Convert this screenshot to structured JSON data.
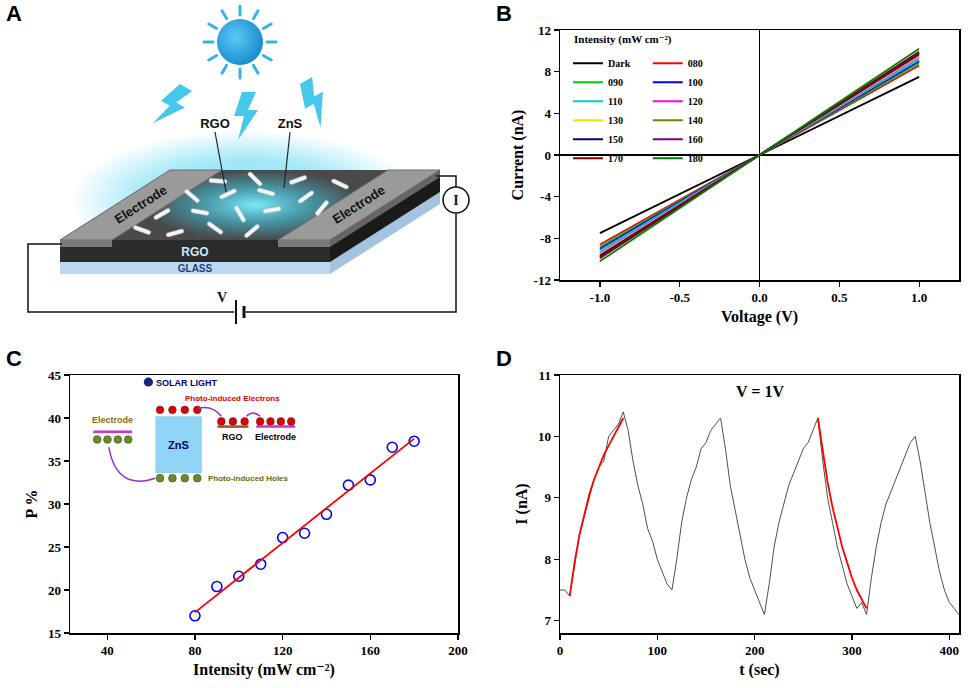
{
  "diagram": {
    "panel": "A",
    "labels": {
      "top_rgo": "RGO",
      "top_zns": "ZnS",
      "left_electrode": "Electrode",
      "right_electrode": "Electrode",
      "layer": "RGO",
      "substrate": "GLASS",
      "voltage": "V",
      "meter": "I"
    }
  },
  "chart_data": [
    {
      "panel": "B",
      "type": "line",
      "x_label": "Voltage (V)",
      "y_label": "Current (nA)",
      "legend_title": "Intensity (mW cm⁻²)",
      "legend": "upper left",
      "grid": false,
      "x": [
        -1,
        0,
        1
      ],
      "series": [
        {
          "name": "Dark",
          "color": "#000000",
          "line_style": "solid",
          "values": [
            -7.5,
            0,
            7.5
          ]
        },
        {
          "name": "080",
          "color": "#ff0000",
          "line_style": "solid",
          "values": [
            -8.6,
            0,
            8.6
          ]
        },
        {
          "name": "090",
          "color": "#00cc00",
          "line_style": "solid",
          "values": [
            -8.8,
            0,
            8.8
          ]
        },
        {
          "name": "100",
          "color": "#0000ff",
          "line_style": "solid",
          "values": [
            -9.0,
            0,
            9.0
          ]
        },
        {
          "name": "110",
          "color": "#00cccc",
          "line_style": "solid",
          "values": [
            -9.2,
            0,
            9.2
          ]
        },
        {
          "name": "120",
          "color": "#ff00ff",
          "line_style": "solid",
          "values": [
            -9.4,
            0,
            9.4
          ]
        },
        {
          "name": "130",
          "color": "#e6e600",
          "line_style": "solid",
          "values": [
            -9.5,
            0,
            9.5
          ]
        },
        {
          "name": "140",
          "color": "#808000",
          "line_style": "solid",
          "values": [
            -9.6,
            0,
            9.6
          ]
        },
        {
          "name": "150",
          "color": "#000080",
          "line_style": "solid",
          "values": [
            -9.7,
            0,
            9.7
          ]
        },
        {
          "name": "160",
          "color": "#800080",
          "line_style": "solid",
          "values": [
            -9.8,
            0,
            9.8
          ]
        },
        {
          "name": "170",
          "color": "#800000",
          "line_style": "solid",
          "values": [
            -9.9,
            0,
            9.9
          ]
        },
        {
          "name": "180",
          "color": "#008000",
          "line_style": "solid",
          "values": [
            -10.2,
            0,
            10.2
          ]
        }
      ],
      "xlim": [
        -1.25,
        1.25
      ],
      "xticks": [
        {
          "value": -1,
          "label": "-1.0"
        },
        -0.5,
        {
          "value": 0,
          "label": "0.0"
        },
        0.5,
        {
          "value": 1,
          "label": "1.0"
        }
      ],
      "ylim": [
        -12,
        12
      ],
      "yticks": [
        -12,
        -8,
        -4,
        0,
        4,
        8,
        12
      ]
    },
    {
      "panel": "C",
      "type": "scatter",
      "x_label": "Intensity (mW cm⁻²)",
      "y_label": "P %",
      "grid": false,
      "series": [
        {
          "type": "scatter",
          "marker": "open circle",
          "color": "#0000ff",
          "x": [
            80,
            90,
            100,
            110,
            120,
            130,
            140,
            150,
            160,
            170,
            180
          ],
          "values": [
            17.0,
            20.4,
            21.6,
            23.0,
            26.1,
            26.6,
            28.8,
            32.2,
            32.8,
            36.6,
            37.3
          ]
        },
        {
          "type": "line",
          "line_style": "solid",
          "color": "#ff0000",
          "x": [
            80,
            180
          ],
          "values": [
            17.4,
            37.6
          ]
        }
      ],
      "xlim": [
        23,
        200
      ],
      "xticks": [
        40,
        80,
        120,
        160,
        200
      ],
      "ylim": [
        15,
        45
      ],
      "yticks": [
        15,
        20,
        25,
        30,
        35,
        40,
        45
      ],
      "annotations": {
        "light": "SOLAR LIGHT",
        "electrons": "Photo-induced Electrons",
        "left_electrode": "Electrode",
        "semiconductor": "ZnS",
        "graphene": "RGO",
        "right_electrode": "Electrode",
        "holes": "Photo-induced Holes"
      }
    },
    {
      "panel": "D",
      "type": "line",
      "x_label": "t (sec)",
      "y_label": "I (nA)",
      "grid": false,
      "annotations": [
        "V = 1V"
      ],
      "series": [
        {
          "color": "#505050",
          "line_style": "solid",
          "x": [
            0,
            5,
            10,
            15,
            20,
            25,
            30,
            35,
            40,
            45,
            50,
            55,
            60,
            65,
            70,
            75,
            80,
            85,
            90,
            95,
            100,
            105,
            110,
            115,
            120,
            125,
            130,
            135,
            140,
            145,
            150,
            155,
            160,
            165,
            170,
            175,
            180,
            185,
            190,
            195,
            200,
            205,
            210,
            215,
            220,
            225,
            230,
            235,
            240,
            245,
            250,
            255,
            260,
            265,
            270,
            275,
            280,
            285,
            290,
            295,
            300,
            305,
            310,
            315,
            320,
            325,
            330,
            335,
            340,
            345,
            350,
            355,
            360,
            365,
            370,
            375,
            380,
            385,
            390,
            395,
            400,
            405,
            410
          ],
          "values": [
            7.5,
            7.5,
            7.4,
            7.9,
            8.4,
            8.7,
            9.0,
            9.3,
            9.5,
            9.6,
            10.0,
            10.1,
            10.2,
            10.4,
            10.1,
            9.6,
            9.2,
            8.9,
            8.5,
            8.3,
            8.0,
            7.8,
            7.6,
            7.5,
            8.0,
            8.6,
            9.0,
            9.3,
            9.5,
            9.8,
            9.9,
            10.1,
            10.2,
            10.3,
            9.8,
            9.2,
            8.8,
            8.4,
            8.0,
            7.7,
            7.5,
            7.3,
            7.1,
            7.6,
            8.2,
            8.6,
            8.9,
            9.2,
            9.4,
            9.6,
            9.8,
            9.9,
            10.1,
            10.3,
            9.6,
            9.0,
            8.6,
            8.2,
            7.9,
            7.6,
            7.4,
            7.2,
            7.3,
            7.1,
            7.7,
            8.2,
            8.6,
            8.9,
            9.1,
            9.3,
            9.5,
            9.7,
            9.9,
            10.0,
            9.6,
            9.1,
            8.6,
            8.2,
            7.8,
            7.5,
            7.3,
            7.2,
            7.1
          ]
        },
        {
          "color": "#ff0000",
          "line_style": "solid",
          "x": [
            10,
            15,
            20,
            25,
            30,
            35,
            40,
            45,
            50,
            55,
            60,
            65
          ],
          "values": [
            7.4,
            7.95,
            8.4,
            8.75,
            9.05,
            9.3,
            9.5,
            9.7,
            9.85,
            10.0,
            10.15,
            10.3
          ]
        },
        {
          "color": "#ff0000",
          "line_style": "solid",
          "x": [
            265,
            270,
            275,
            280,
            285,
            290,
            295,
            300,
            305,
            310,
            315
          ],
          "values": [
            10.3,
            9.75,
            9.25,
            8.85,
            8.5,
            8.2,
            7.95,
            7.7,
            7.5,
            7.35,
            7.2
          ]
        }
      ],
      "xlim": [
        0,
        410
      ],
      "xticks": [
        0,
        100,
        200,
        300,
        400
      ],
      "ylim": [
        6.8,
        11
      ],
      "yticks": [
        7,
        8,
        9,
        10,
        11
      ]
    }
  ]
}
